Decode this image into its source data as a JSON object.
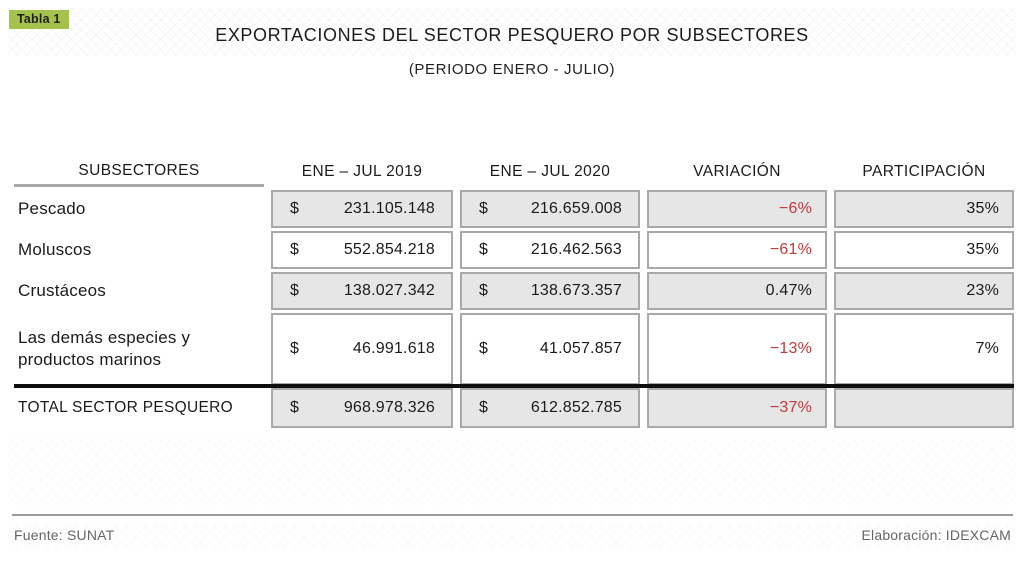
{
  "badge": {
    "label": "Tabla 1"
  },
  "title": "EXPORTACIONES DEL SECTOR PESQUERO POR SUBSECTORES",
  "subtitle": "(PERIODO ENERO - JULIO)",
  "table": {
    "currency_symbol": "$",
    "headers": {
      "subsectors": "SUBSECTORES",
      "period_2019": "ENE – JUL 2019",
      "period_2020": "ENE – JUL 2020",
      "variation": "VARIACIÓN",
      "participation": "PARTICIPACIÓN"
    },
    "rows": [
      {
        "label": "Pescado",
        "value_2019": "231.105.148",
        "value_2020": "216.659.008",
        "variation": "−6%",
        "variation_color": "#c0393d",
        "participation": "35%"
      },
      {
        "label": "Moluscos",
        "value_2019": "552.854.218",
        "value_2020": "216.462.563",
        "variation": "−61%",
        "variation_color": "#c0393d",
        "participation": "35%"
      },
      {
        "label": "Crustáceos",
        "value_2019": "138.027.342",
        "value_2020": "138.673.357",
        "variation": "0.47%",
        "variation_color": "#1b1b1b",
        "participation": "23%"
      },
      {
        "label": "Las demás especies y productos marinos",
        "value_2019": "46.991.618",
        "value_2020": "41.057.857",
        "variation": "−13%",
        "variation_color": "#c0393d",
        "participation": "7%"
      }
    ],
    "total_row": {
      "label": "TOTAL SECTOR PESQUERO",
      "value_2019": "968.978.326",
      "value_2020": "612.852.785",
      "variation": "−37%",
      "variation_color": "#c0393d",
      "participation": ""
    }
  },
  "footer": {
    "source": "Fuente: SUNAT",
    "elaboration": "Elaboración: IDEXCAM"
  },
  "colors": {
    "badge_green": "#a5c24c",
    "negative_red": "#c0393d",
    "text_dark": "#1b1b1b",
    "cell_shade": "#e6e6e6",
    "cell_border": "#a9a9a9",
    "footer_text": "#666666"
  }
}
